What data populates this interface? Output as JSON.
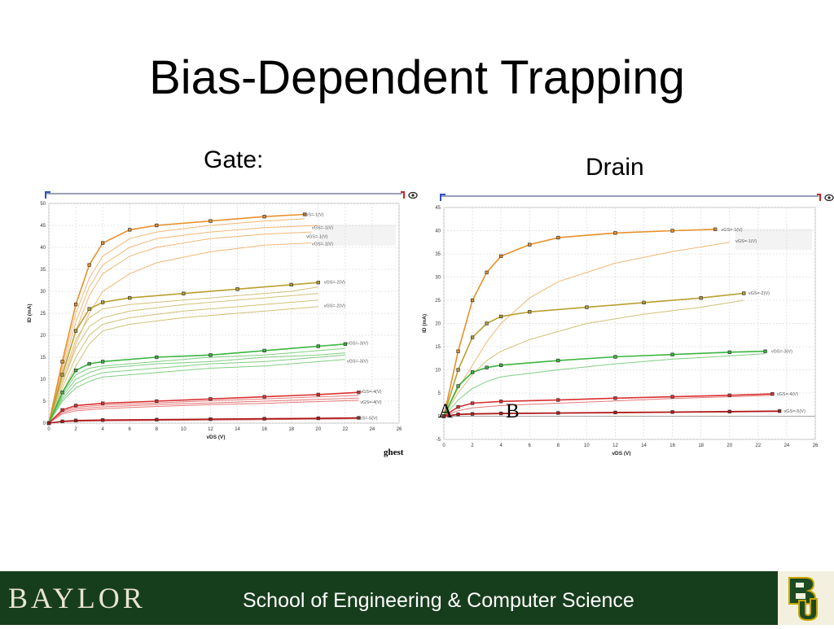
{
  "slide": {
    "title": "Bias-Dependent Trapping",
    "gate_label": "Gate:",
    "drain_label": "Drain",
    "note_ghest": "ghest",
    "marker_a": "A",
    "marker_b": "B"
  },
  "footer": {
    "brand": "BAYLOR",
    "school": "School of Engineering & Computer Science",
    "logo": "BU"
  },
  "colors": {
    "footer_bg": "#173e1c",
    "vgs1": "#e8902a",
    "vgs2": "#b8a030",
    "vgs3": "#3cb440",
    "vgs4": "#d83030",
    "vgs5": "#b01818"
  },
  "chart_data": [
    {
      "type": "line",
      "id": "gate",
      "xlabel": "vDS (V)",
      "ylabel": "ID (mA)",
      "xlim": [
        0,
        26
      ],
      "ylim": [
        0,
        50
      ],
      "xticks": [
        0,
        2,
        4,
        6,
        8,
        10,
        12,
        14,
        16,
        18,
        20,
        22,
        24,
        26
      ],
      "yticks": [
        0,
        5,
        10,
        15,
        20,
        25,
        30,
        35,
        40,
        45,
        50
      ],
      "grid": true,
      "series": [
        {
          "name": "vGS=-1(V)",
          "group": "vgs1",
          "x": [
            0,
            1,
            2,
            3,
            4,
            6,
            8,
            12,
            16,
            19
          ],
          "y": [
            0,
            14,
            27,
            36,
            41,
            44,
            45,
            46,
            47,
            47.5
          ]
        },
        {
          "name": "vGS=-1(V)",
          "group": "vgs1",
          "x": [
            0,
            1,
            2,
            3,
            4,
            6,
            8,
            12,
            16,
            19
          ],
          "y": [
            0,
            13,
            25,
            33,
            38,
            42,
            43.5,
            45,
            46,
            46.5
          ]
        },
        {
          "name": "vGS=-1(V)",
          "group": "vgs1",
          "x": [
            0,
            1,
            2,
            3,
            4,
            6,
            8,
            12,
            16,
            20
          ],
          "y": [
            0,
            12,
            23,
            31,
            36,
            40,
            42,
            43.5,
            44.5,
            45
          ]
        },
        {
          "name": "vGS=-1(V)",
          "group": "vgs1",
          "x": [
            0,
            1,
            2,
            3,
            4,
            6,
            8,
            12,
            16,
            19.5
          ],
          "y": [
            0,
            11,
            21,
            29,
            34,
            38,
            40,
            42,
            43,
            43.5
          ]
        },
        {
          "name": "vGS=-1(V)",
          "group": "vgs1",
          "x": [
            0,
            1,
            2,
            3,
            4,
            6,
            8,
            12,
            16,
            19.5
          ],
          "y": [
            0,
            9,
            18,
            25,
            30,
            34,
            36.5,
            39,
            40.5,
            41
          ]
        },
        {
          "name": "vGS=-2(V)",
          "group": "vgs2",
          "x": [
            0,
            1,
            2,
            3,
            4,
            6,
            10,
            14,
            18,
            20
          ],
          "y": [
            0,
            11,
            21,
            26,
            27.5,
            28.5,
            29.5,
            30.5,
            31.5,
            32
          ]
        },
        {
          "name": "vGS=-2(V)",
          "group": "vgs2",
          "x": [
            0,
            1,
            2,
            3,
            4,
            6,
            10,
            14,
            18,
            20
          ],
          "y": [
            0,
            10,
            19,
            24,
            26,
            27,
            28,
            29,
            30,
            31
          ]
        },
        {
          "name": "vGS=-2(V)",
          "group": "vgs2",
          "x": [
            0,
            1,
            2,
            3,
            4,
            6,
            10,
            14,
            18,
            20
          ],
          "y": [
            0,
            9,
            17,
            22,
            24,
            25.5,
            27,
            28,
            29,
            29.5
          ]
        },
        {
          "name": "vGS=-2(V)",
          "group": "vgs2",
          "x": [
            0,
            1,
            2,
            3,
            4,
            6,
            10,
            14,
            18,
            20
          ],
          "y": [
            0,
            8,
            15,
            20,
            22.5,
            24,
            25.5,
            26.5,
            27.5,
            28
          ]
        },
        {
          "name": "vGS=-2(V)",
          "group": "vgs2",
          "x": [
            0,
            1,
            2,
            3,
            4,
            6,
            10,
            14,
            18,
            20
          ],
          "y": [
            0,
            7,
            13,
            18,
            21,
            22.5,
            24,
            25,
            26,
            26.5
          ]
        },
        {
          "name": "vGS=-3(V)",
          "group": "vgs3",
          "x": [
            0,
            1,
            2,
            3,
            4,
            8,
            12,
            16,
            20,
            22
          ],
          "y": [
            0,
            7,
            12,
            13.5,
            14,
            15,
            15.5,
            16.5,
            17.5,
            18
          ]
        },
        {
          "name": "vGS=-3(V)",
          "group": "vgs3",
          "x": [
            0,
            1,
            2,
            3,
            4,
            8,
            12,
            16,
            20,
            22
          ],
          "y": [
            0,
            6.5,
            11,
            12.5,
            13,
            14,
            15,
            15.5,
            16.5,
            17
          ]
        },
        {
          "name": "vGS=-3(V)",
          "group": "vgs3",
          "x": [
            0,
            1,
            2,
            3,
            4,
            8,
            12,
            16,
            20,
            22
          ],
          "y": [
            0,
            6,
            10,
            11.5,
            12.5,
            13.5,
            14,
            15,
            15.5,
            16
          ]
        },
        {
          "name": "vGS=-3(V)",
          "group": "vgs3",
          "x": [
            0,
            1,
            2,
            3,
            4,
            8,
            12,
            16,
            20,
            22
          ],
          "y": [
            0,
            5.5,
            9,
            10.5,
            11.5,
            12.5,
            13.5,
            14,
            15,
            15.5
          ]
        },
        {
          "name": "vGS=-3(V)",
          "group": "vgs3",
          "x": [
            0,
            1,
            2,
            3,
            4,
            8,
            12,
            16,
            20,
            22
          ],
          "y": [
            0,
            5,
            8,
            9.5,
            10.5,
            11.5,
            12.5,
            13,
            14,
            14.5
          ]
        },
        {
          "name": "vGS=-4(V)",
          "group": "vgs4",
          "x": [
            0,
            1,
            2,
            4,
            8,
            12,
            16,
            20,
            23
          ],
          "y": [
            0,
            3,
            4,
            4.5,
            5,
            5.5,
            6,
            6.5,
            7
          ]
        },
        {
          "name": "vGS=-4(V)",
          "group": "vgs4",
          "x": [
            0,
            1,
            2,
            4,
            8,
            12,
            16,
            20,
            23
          ],
          "y": [
            0,
            2.7,
            3.6,
            4.1,
            4.6,
            5.1,
            5.5,
            6,
            6.3
          ]
        },
        {
          "name": "vGS=-4(V)",
          "group": "vgs4",
          "x": [
            0,
            1,
            2,
            4,
            8,
            12,
            16,
            20,
            23
          ],
          "y": [
            0,
            2.4,
            3.2,
            3.7,
            4.2,
            4.6,
            5,
            5.4,
            5.7
          ]
        },
        {
          "name": "vGS=-4(V)",
          "group": "vgs4",
          "x": [
            0,
            1,
            2,
            4,
            8,
            12,
            16,
            20,
            23
          ],
          "y": [
            0,
            2.1,
            2.8,
            3.3,
            3.8,
            4.2,
            4.5,
            4.9,
            5.2
          ]
        },
        {
          "name": "vGS=-5(V)",
          "group": "vgs5",
          "x": [
            0,
            1,
            2,
            4,
            8,
            12,
            16,
            20,
            23
          ],
          "y": [
            0,
            0.4,
            0.6,
            0.7,
            0.8,
            0.9,
            1,
            1.1,
            1.2
          ]
        },
        {
          "name": "vGS=-5(V)",
          "group": "vgs5",
          "x": [
            0,
            1,
            2,
            4,
            8,
            12,
            16,
            20,
            23
          ],
          "y": [
            0,
            0.3,
            0.4,
            0.5,
            0.6,
            0.7,
            0.8,
            0.9,
            1
          ]
        }
      ],
      "legend": [
        {
          "text": "vGS=-1(V)",
          "group": "vgs1",
          "xv": 18.7,
          "yv": 47.5
        },
        {
          "text": "vGS=-1(V)",
          "group": "vgs1",
          "xv": 19.4,
          "yv": 44.5
        },
        {
          "text": "vGS=-1(V)",
          "group": "vgs1",
          "xv": 19.0,
          "yv": 42.5
        },
        {
          "text": "vGS=-1(V)",
          "group": "vgs1",
          "xv": 19.4,
          "yv": 40.8
        },
        {
          "text": "vGS=-2(V)",
          "group": "vgs2",
          "xv": 20.3,
          "yv": 32.1
        },
        {
          "text": "vGS=-2(V)",
          "group": "vgs2",
          "xv": 20.3,
          "yv": 26.8
        },
        {
          "text": "vGS=-3(V)",
          "group": "vgs3",
          "xv": 22.0,
          "yv": 18.2
        },
        {
          "text": "vGS=-3(V)",
          "group": "vgs3",
          "xv": 22.0,
          "yv": 14.2
        },
        {
          "text": "vGS=-4(V)",
          "group": "vgs4",
          "xv": 23.0,
          "yv": 7.2
        },
        {
          "text": "vGS=-4(V)",
          "group": "vgs4",
          "xv": 23.0,
          "yv": 4.8
        },
        {
          "text": "vGS=-5(V)",
          "group": "vgs5",
          "xv": 22.7,
          "yv": 1.2
        }
      ]
    },
    {
      "type": "line",
      "id": "drain",
      "xlabel": "vDS (V)",
      "ylabel": "ID (mA)",
      "xlim": [
        0,
        26
      ],
      "ylim": [
        -5,
        45
      ],
      "xticks": [
        0,
        2,
        4,
        6,
        8,
        10,
        12,
        14,
        16,
        18,
        20,
        22,
        24,
        26
      ],
      "yticks": [
        -5,
        0,
        5,
        10,
        15,
        20,
        25,
        30,
        35,
        40,
        45
      ],
      "grid": true,
      "series": [
        {
          "name": "vGS=-1(V)",
          "group": "vgs1",
          "x": [
            0,
            1,
            2,
            3,
            4,
            6,
            8,
            12,
            16,
            19
          ],
          "y": [
            0,
            14,
            25,
            31,
            34.5,
            37,
            38.5,
            39.5,
            40,
            40.3
          ]
        },
        {
          "name": "vGS=-1(V)",
          "group": "vgs1",
          "x": [
            0,
            1,
            2,
            3,
            4,
            6,
            8,
            12,
            16,
            20
          ],
          "y": [
            0,
            6,
            11,
            16,
            20,
            25.5,
            29,
            33,
            35.5,
            37.5
          ]
        },
        {
          "name": "vGS=-2(V)",
          "group": "vgs2",
          "x": [
            0,
            1,
            2,
            3,
            4,
            6,
            10,
            14,
            18,
            21
          ],
          "y": [
            0,
            10,
            17,
            20,
            21.5,
            22.5,
            23.5,
            24.5,
            25.5,
            26.5
          ]
        },
        {
          "name": "vGS=-2(V)",
          "group": "vgs2",
          "x": [
            0,
            1,
            2,
            3,
            4,
            6,
            10,
            14,
            18,
            21
          ],
          "y": [
            0,
            5,
            9,
            12,
            14,
            16.5,
            20,
            22,
            23.5,
            25
          ]
        },
        {
          "name": "vGS=-3(V)",
          "group": "vgs3",
          "x": [
            0,
            1,
            2,
            3,
            4,
            8,
            12,
            16,
            20,
            22.5
          ],
          "y": [
            0,
            6.5,
            9.5,
            10.5,
            11,
            12,
            12.8,
            13.3,
            13.8,
            14
          ]
        },
        {
          "name": "vGS=-3(V)",
          "group": "vgs3",
          "x": [
            0,
            1,
            2,
            3,
            4,
            8,
            12,
            16,
            20,
            22.5
          ],
          "y": [
            0,
            3.5,
            6,
            7.5,
            8.5,
            10,
            11.3,
            12.3,
            13,
            13.5
          ]
        },
        {
          "name": "vGS=-4(V)",
          "group": "vgs4",
          "x": [
            0,
            1,
            2,
            4,
            8,
            12,
            16,
            20,
            23
          ],
          "y": [
            0,
            2,
            2.8,
            3.2,
            3.5,
            3.9,
            4.2,
            4.5,
            4.8
          ]
        },
        {
          "name": "vGS=-4(V)",
          "group": "vgs4",
          "x": [
            0,
            1,
            2,
            4,
            8,
            12,
            16,
            20,
            23
          ],
          "y": [
            0,
            1.2,
            1.8,
            2.3,
            2.8,
            3.3,
            3.8,
            4.2,
            4.5
          ]
        },
        {
          "name": "vGS=-5(V)",
          "group": "vgs5",
          "x": [
            0,
            1,
            2,
            4,
            8,
            12,
            16,
            20,
            23.5
          ],
          "y": [
            0,
            0.4,
            0.5,
            0.6,
            0.7,
            0.8,
            0.9,
            1,
            1.1
          ]
        },
        {
          "name": "vGS=-5(V)",
          "group": "vgs5",
          "x": [
            0,
            1,
            2,
            4,
            8,
            12,
            16,
            20,
            23.5
          ],
          "y": [
            0,
            0.3,
            0.4,
            0.5,
            0.6,
            0.7,
            0.8,
            0.9,
            1
          ]
        }
      ],
      "legend": [
        {
          "text": "vGS=-1(V)",
          "group": "vgs1",
          "xv": 19.3,
          "yv": 40.3
        },
        {
          "text": "vGS=-1(V)",
          "group": "vgs1",
          "xv": 20.3,
          "yv": 37.8
        },
        {
          "text": "vGS=-2(V)",
          "group": "vgs2",
          "xv": 21.2,
          "yv": 26.6
        },
        {
          "text": "vGS=-3(V)",
          "group": "vgs3",
          "xv": 22.8,
          "yv": 14.0
        },
        {
          "text": "vGS=-4(V)",
          "group": "vgs4",
          "xv": 23.2,
          "yv": 4.8
        },
        {
          "text": "vGS=-5(V)",
          "group": "vgs5",
          "xv": 23.7,
          "yv": 1.1
        }
      ]
    }
  ]
}
